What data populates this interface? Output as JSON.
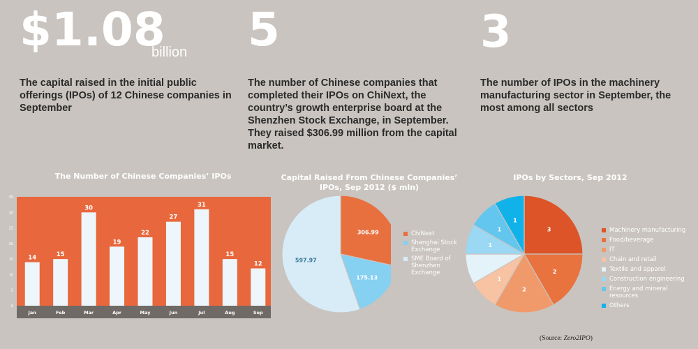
{
  "stats": [
    {
      "value": "$1.08",
      "unit": "billion",
      "desc": "The capital raised in the initial public offerings (IPOs) of 12 Chinese companies in September"
    },
    {
      "value": "5",
      "unit": "",
      "desc": "The number of Chinese companies that completed their IPOs on ChiNext, the country’s growth enterprise board at the Shenzhen Stock Exchange, in September. They raised $306.99 million from the capital market."
    },
    {
      "value": "3",
      "unit": "",
      "desc": "The number of IPOs in the machinery manufacturing sector in September, the most among all sectors"
    }
  ],
  "source_label": "(Source: ",
  "source_name": "Zero2IPO",
  "source_close": ")",
  "chart_data": [
    {
      "type": "bar",
      "title": "The Number of Chinese Companies’ IPOs",
      "categories": [
        "Jan",
        "Feb",
        "Mar",
        "Apr",
        "May",
        "Jun",
        "Jul",
        "Aug",
        "Sep"
      ],
      "values": [
        14,
        15,
        30,
        19,
        22,
        27,
        31,
        15,
        12
      ],
      "ylim": [
        0,
        35
      ],
      "yticks": [
        0,
        5,
        10,
        15,
        20,
        25,
        30,
        35
      ],
      "colors": {
        "plot_bg": "#e8673c",
        "bar": "#eef6fb",
        "axis_band": "#6f6a66"
      }
    },
    {
      "type": "pie",
      "title": "Capital Raised From Chinese Companies’ IPOs, Sep 2012 ($ mln)",
      "labels": [
        "ChiNext",
        "Shanghai Stock Exchange",
        "SME Board of Shenzhen Exchange"
      ],
      "values": [
        306.99,
        175.13,
        597.97
      ],
      "colors": [
        "#e8703f",
        "#86d0f2",
        "#d7ecf7"
      ]
    },
    {
      "type": "pie",
      "title": "IPOs by Sectors, Sep 2012",
      "labels": [
        "Machinery manufacturing",
        "Food/beverage",
        "IT",
        "Chain and retail",
        "Textile and apparel",
        "Construction engineering",
        "Energy and mineral resources",
        "Others"
      ],
      "values": [
        3,
        2,
        2,
        1,
        1,
        1,
        1,
        1
      ],
      "slice_labels": [
        "3",
        "2",
        "2",
        "1",
        "",
        "1",
        "1",
        "1"
      ],
      "colors": [
        "#dd5428",
        "#e8733f",
        "#f09a6c",
        "#f7c3a3",
        "#e4f2f9",
        "#9ad8f4",
        "#63c6ef",
        "#11b2ea"
      ]
    }
  ]
}
